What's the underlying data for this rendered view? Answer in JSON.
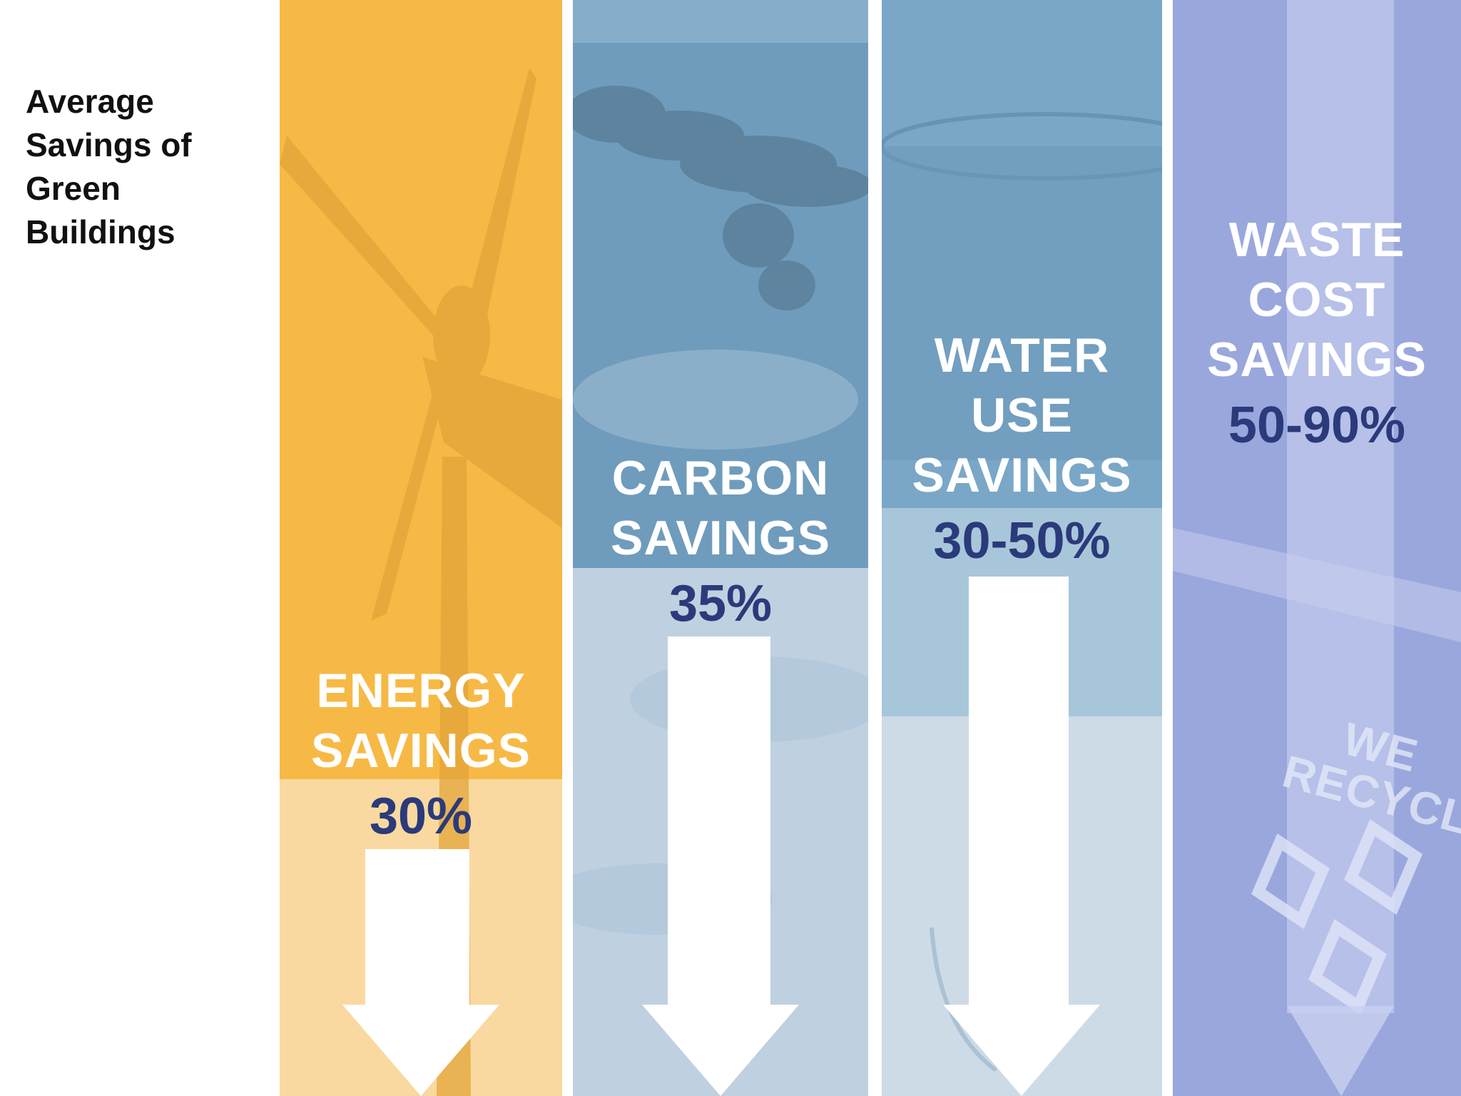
{
  "title": "Average Savings of Green Buildings",
  "colors": {
    "energy": "#f7b945",
    "energy_light": "#f9d9a0",
    "carbon": "#6f9cbc",
    "carbon_light": "#bfd0e0",
    "water": "#7aa7c7",
    "water_light": "#cddbe6",
    "waste": "#8c9ad6",
    "percent_text": "#2b3a7a"
  },
  "columns": [
    {
      "id": "energy",
      "label_lines": [
        "ENERGY",
        "SAVINGS"
      ],
      "percent": "30%",
      "background": "wind-turbine-icon"
    },
    {
      "id": "carbon",
      "label_lines": [
        "CARBON",
        "SAVINGS"
      ],
      "percent": "35%",
      "background": "smoke-cloud-icon"
    },
    {
      "id": "water",
      "label_lines": [
        "WATER",
        "USE",
        "SAVINGS"
      ],
      "percent": "30-50%",
      "background": "water-glass-icon"
    },
    {
      "id": "waste",
      "label_lines": [
        "WASTE",
        "COST",
        "SAVINGS"
      ],
      "percent": "50-90%",
      "background": "recycle-bin-icon",
      "bin_text_lines": [
        "WE",
        "RECYCLE"
      ]
    }
  ]
}
